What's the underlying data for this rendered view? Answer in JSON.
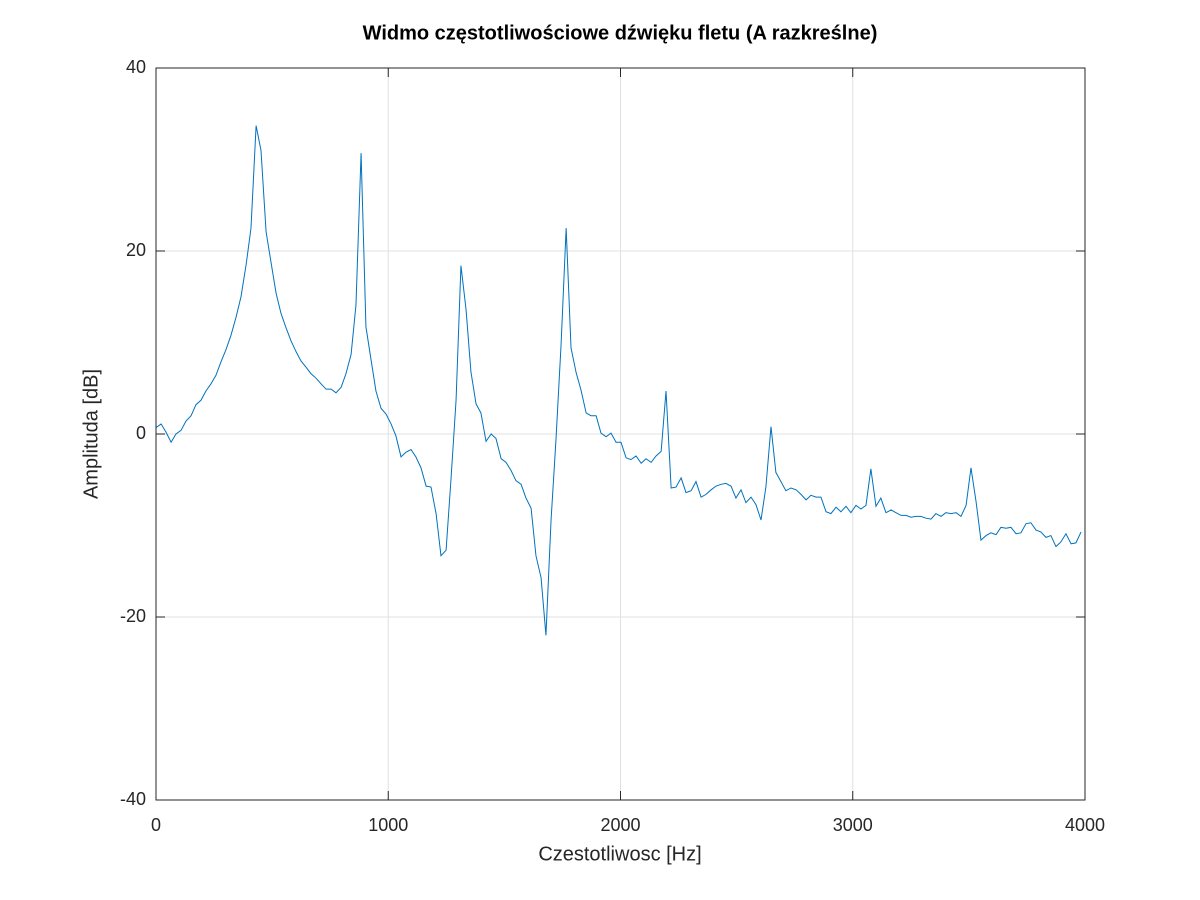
{
  "chart_data": {
    "type": "line",
    "title": "Widmo częstotliwościowe dźwięku fletu (A razkreślne)",
    "xlabel": "Czestotliwosc [Hz]",
    "ylabel": "Amplituda [dB]",
    "color": "#0072bd",
    "grid": true,
    "xlim": [
      0,
      4000
    ],
    "xticks": [
      0,
      1000,
      2000,
      3000,
      4000
    ],
    "ylim": [
      -40,
      40
    ],
    "yticks": [
      -40,
      -20,
      0,
      20,
      40
    ],
    "x": [
      0,
      22,
      43,
      65,
      86,
      108,
      129,
      151,
      172,
      194,
      215,
      237,
      258,
      280,
      301,
      323,
      344,
      366,
      388,
      409,
      431,
      452,
      474,
      495,
      517,
      538,
      560,
      581,
      603,
      624,
      646,
      667,
      689,
      710,
      732,
      754,
      775,
      797,
      818,
      840,
      861,
      883,
      904,
      926,
      947,
      969,
      990,
      1012,
      1033,
      1055,
      1076,
      1098,
      1119,
      1141,
      1163,
      1184,
      1206,
      1227,
      1249,
      1270,
      1292,
      1313,
      1335,
      1356,
      1378,
      1399,
      1421,
      1443,
      1464,
      1486,
      1507,
      1529,
      1550,
      1572,
      1593,
      1615,
      1636,
      1658,
      1679,
      1701,
      1722,
      1744,
      1766,
      1787,
      1809,
      1830,
      1852,
      1873,
      1895,
      1916,
      1938,
      1959,
      1981,
      2002,
      2024,
      2045,
      2067,
      2089,
      2110,
      2132,
      2153,
      2175,
      2196,
      2218,
      2239,
      2261,
      2282,
      2304,
      2325,
      2347,
      2368,
      2390,
      2411,
      2433,
      2454,
      2476,
      2497,
      2519,
      2540,
      2562,
      2583,
      2605,
      2626,
      2648,
      2669,
      2691,
      2712,
      2734,
      2756,
      2777,
      2799,
      2820,
      2842,
      2863,
      2885,
      2906,
      2928,
      2949,
      2971,
      2992,
      3014,
      3035,
      3057,
      3078,
      3100,
      3121,
      3143,
      3165,
      3186,
      3208,
      3229,
      3251,
      3272,
      3294,
      3315,
      3337,
      3358,
      3380,
      3401,
      3423,
      3445,
      3466,
      3488,
      3509,
      3531,
      3552,
      3574,
      3595,
      3617,
      3638,
      3660,
      3681,
      3703,
      3724,
      3746,
      3767,
      3789,
      3810,
      3832,
      3853,
      3875,
      3896,
      3918,
      3940,
      3961,
      3983
    ],
    "values": [
      0.7,
      1.1,
      0.2,
      -0.9,
      0,
      0.4,
      1.4,
      2.0,
      3.2,
      3.7,
      4.7,
      5.5,
      6.4,
      7.9,
      9.2,
      10.8,
      12.7,
      15.0,
      18.5,
      22.5,
      33.7,
      31.0,
      22.1,
      18.8,
      15.4,
      13.2,
      11.6,
      10.2,
      9.0,
      8.0,
      7.3,
      6.6,
      6.1,
      5.5,
      4.9,
      4.9,
      4.5,
      5.1,
      6.6,
      8.7,
      14.1,
      30.7,
      11.7,
      8.1,
      4.7,
      2.8,
      2.2,
      1.1,
      -0.2,
      -2.5,
      -2.0,
      -1.7,
      -2.5,
      -3.7,
      -5.7,
      -5.8,
      -8.7,
      -13.3,
      -12.7,
      -5.0,
      3.7,
      18.4,
      13.6,
      6.8,
      3.3,
      2.3,
      -0.8,
      0,
      -0.5,
      -2.7,
      -3.1,
      -4.0,
      -5.1,
      -5.5,
      -7.0,
      -8.1,
      -13.3,
      -15.7,
      -22.0,
      -9.4,
      -0.7,
      9.7,
      22.5,
      9.4,
      6.7,
      4.8,
      2.3,
      2.0,
      2.0,
      0.1,
      -0.3,
      0.1,
      -0.9,
      -0.9,
      -2.6,
      -2.8,
      -2.4,
      -3.2,
      -2.7,
      -3.1,
      -2.4,
      -1.9,
      4.7,
      -5.9,
      -5.8,
      -4.8,
      -6.4,
      -6.2,
      -5.2,
      -6.9,
      -6.6,
      -6.1,
      -5.7,
      -5.5,
      -5.4,
      -5.7,
      -7.0,
      -6.1,
      -7.5,
      -6.9,
      -7.7,
      -9.4,
      -5.8,
      0.8,
      -4.2,
      -5.2,
      -6.2,
      -5.9,
      -6.1,
      -6.6,
      -7.2,
      -6.7,
      -6.9,
      -6.9,
      -8.5,
      -8.7,
      -8.0,
      -8.5,
      -7.9,
      -8.6,
      -7.8,
      -8.2,
      -7.8,
      -3.8,
      -7.9,
      -7.0,
      -8.6,
      -8.3,
      -8.6,
      -8.9,
      -8.9,
      -9.1,
      -9.0,
      -9.0,
      -9.2,
      -9.3,
      -8.7,
      -9.0,
      -8.6,
      -8.7,
      -8.6,
      -9.0,
      -7.8,
      -3.7,
      -7.4,
      -11.6,
      -11.1,
      -10.8,
      -11.0,
      -10.2,
      -10.3,
      -10.2,
      -10.9,
      -10.8,
      -9.8,
      -9.7,
      -10.5,
      -10.7,
      -11.3,
      -11.1,
      -12.3,
      -11.8,
      -10.9,
      -12.0,
      -11.9,
      -10.7
    ]
  }
}
